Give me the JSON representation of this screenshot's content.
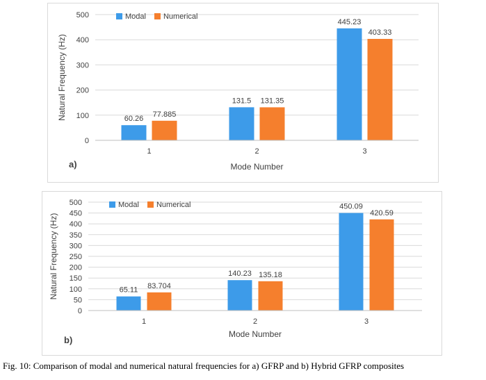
{
  "caption": "Fig. 10: Comparison of modal and numerical natural frequencies for a) GFRP and b) Hybrid GFRP composites",
  "colors": {
    "modal": "#3d9be9",
    "numerical": "#f57f2d",
    "grid": "#d9d9d9",
    "text": "#404040"
  },
  "chart_data": [
    {
      "type": "bar",
      "panel_label": "a)",
      "categories": [
        "1",
        "2",
        "3"
      ],
      "series": [
        {
          "name": "Modal",
          "values": [
            60.26,
            131.5,
            445.23
          ],
          "labels": [
            "60.26",
            "131.5",
            "445.23"
          ]
        },
        {
          "name": "Numerical",
          "values": [
            77.885,
            131.35,
            403.33
          ],
          "labels": [
            "77.885",
            "131.35",
            "403.33"
          ]
        }
      ],
      "xlabel": "Mode Number",
      "ylabel": "Natural Frequency (Hz)",
      "ylim": [
        0,
        500
      ],
      "yticks": [
        0,
        100,
        200,
        300,
        400,
        500
      ],
      "grid": true,
      "legend": "top-left"
    },
    {
      "type": "bar",
      "panel_label": "b)",
      "categories": [
        "1",
        "2",
        "3"
      ],
      "series": [
        {
          "name": "Modal",
          "values": [
            65.11,
            140.23,
            450.09
          ],
          "labels": [
            "65.11",
            "140.23",
            "450.09"
          ]
        },
        {
          "name": "Numerical",
          "values": [
            83.704,
            135.18,
            420.59
          ],
          "labels": [
            "83.704",
            "135.18",
            "420.59"
          ]
        }
      ],
      "xlabel": "Mode Number",
      "ylabel": "Natural Frequency (Hz)",
      "ylim": [
        0,
        500
      ],
      "yticks": [
        0,
        50,
        100,
        150,
        200,
        250,
        300,
        350,
        400,
        450,
        500
      ],
      "grid": true,
      "legend": "top-left"
    }
  ]
}
